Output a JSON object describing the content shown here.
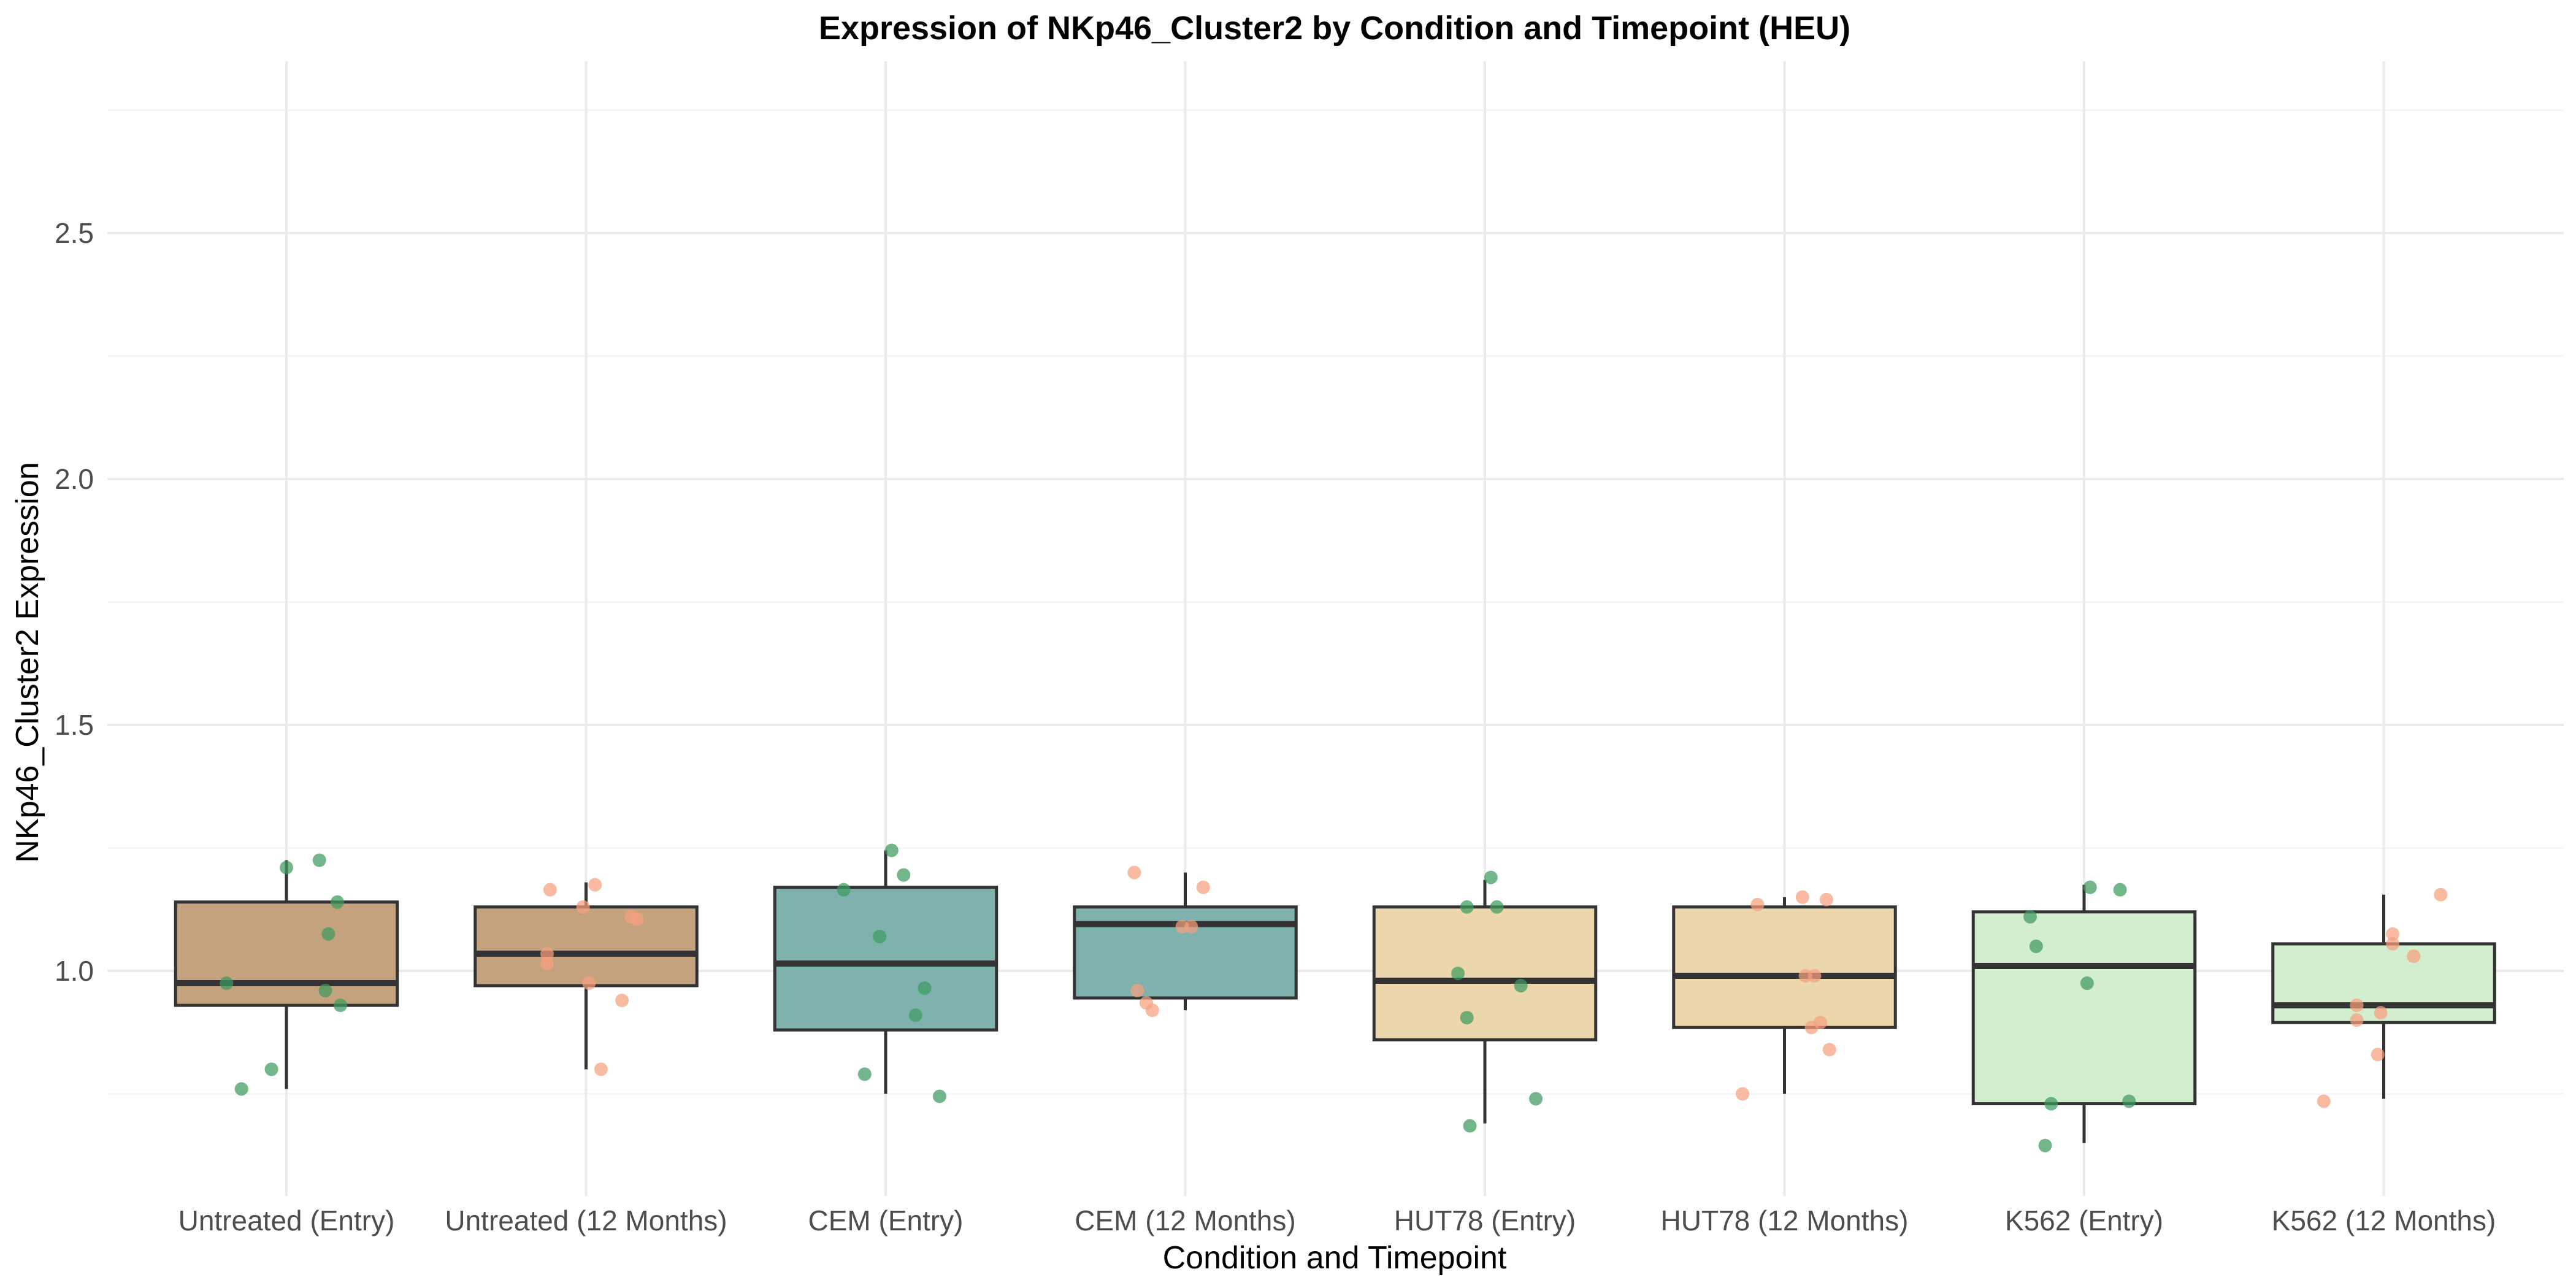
{
  "chart_data": {
    "type": "box",
    "title": "Expression of NKp46_Cluster2 by Condition and Timepoint (HEU)",
    "xlabel": "Condition and Timepoint",
    "ylabel": "NKp46_Cluster2 Expression",
    "ylim": [
      0.6,
      2.77
    ],
    "yticks": [
      1.0,
      1.5,
      2.0,
      2.5
    ],
    "grid": true,
    "legend": "none",
    "colors": {
      "untreated_fill": "#c4a27e",
      "cem_fill": "#7fb2ac",
      "hut78_fill": "#ecd6ac",
      "k562_fill": "#d3eecf",
      "entry_point": "#3f9a5f",
      "months12_point": "#f7a07e",
      "box_line": "#333333"
    },
    "categories": [
      {
        "label": "Untreated (Entry)",
        "fill": "#c4a27e",
        "point_color": "#3f9a5f",
        "whisker_low": 0.76,
        "q1": 0.93,
        "median": 0.975,
        "q3": 1.14,
        "whisker_high": 1.225,
        "points": [
          [
            -0.2,
            0.975
          ],
          [
            -0.15,
            0.76
          ],
          [
            -0.05,
            0.8
          ],
          [
            0.0,
            1.21
          ],
          [
            0.11,
            1.225
          ],
          [
            0.14,
            1.075
          ],
          [
            0.13,
            0.96
          ],
          [
            0.17,
            1.14
          ],
          [
            0.18,
            0.93
          ]
        ]
      },
      {
        "label": "Untreated (12 Months)",
        "fill": "#c4a27e",
        "point_color": "#f7a07e",
        "whisker_low": 0.8,
        "q1": 0.97,
        "median": 1.035,
        "q3": 1.13,
        "whisker_high": 1.18,
        "points": [
          [
            -0.12,
            1.165
          ],
          [
            -0.13,
            1.035
          ],
          [
            -0.13,
            1.015
          ],
          [
            -0.01,
            1.13
          ],
          [
            0.01,
            0.975
          ],
          [
            0.03,
            1.175
          ],
          [
            0.05,
            0.8
          ],
          [
            0.12,
            0.94
          ],
          [
            0.15,
            1.11
          ],
          [
            0.17,
            1.105
          ]
        ]
      },
      {
        "label": "CEM (Entry)",
        "fill": "#7fb2ac",
        "point_color": "#3f9a5f",
        "whisker_low": 0.75,
        "q1": 0.88,
        "median": 1.015,
        "q3": 1.17,
        "whisker_high": 1.245,
        "points": [
          [
            -0.14,
            1.165
          ],
          [
            -0.07,
            0.79
          ],
          [
            -0.02,
            1.07
          ],
          [
            0.02,
            1.245
          ],
          [
            0.06,
            1.195
          ],
          [
            0.1,
            0.91
          ],
          [
            0.13,
            0.965
          ],
          [
            0.18,
            0.745
          ]
        ]
      },
      {
        "label": "CEM (12 Months)",
        "fill": "#7fb2ac",
        "point_color": "#f7a07e",
        "whisker_low": 0.92,
        "q1": 0.945,
        "median": 1.095,
        "q3": 1.13,
        "whisker_high": 1.2,
        "points": [
          [
            -0.17,
            1.2
          ],
          [
            -0.16,
            0.96
          ],
          [
            -0.13,
            0.935
          ],
          [
            -0.11,
            0.92
          ],
          [
            -0.01,
            1.09
          ],
          [
            0.02,
            1.09
          ],
          [
            0.06,
            1.17
          ]
        ]
      },
      {
        "label": "HUT78 (Entry)",
        "fill": "#ecd6ac",
        "point_color": "#3f9a5f",
        "whisker_low": 0.69,
        "q1": 0.86,
        "median": 0.98,
        "q3": 1.13,
        "whisker_high": 1.185,
        "points": [
          [
            -0.09,
            0.995
          ],
          [
            -0.06,
            1.13
          ],
          [
            -0.06,
            0.905
          ],
          [
            -0.05,
            0.685
          ],
          [
            0.02,
            1.19
          ],
          [
            0.04,
            1.13
          ],
          [
            0.12,
            0.97
          ],
          [
            0.17,
            0.74
          ]
        ]
      },
      {
        "label": "HUT78 (12 Months)",
        "fill": "#ecd6ac",
        "point_color": "#f7a07e",
        "whisker_low": 0.75,
        "q1": 0.885,
        "median": 0.99,
        "q3": 1.13,
        "whisker_high": 1.15,
        "points": [
          [
            -0.14,
            0.75
          ],
          [
            -0.09,
            1.135
          ],
          [
            0.06,
            1.15
          ],
          [
            0.07,
            0.99
          ],
          [
            0.09,
            0.885
          ],
          [
            0.1,
            0.99
          ],
          [
            0.12,
            0.895
          ],
          [
            0.14,
            1.145
          ],
          [
            0.15,
            0.84
          ]
        ]
      },
      {
        "label": "K562 (Entry)",
        "fill": "#d3eecf",
        "point_color": "#3f9a5f",
        "whisker_low": 0.65,
        "q1": 0.73,
        "median": 1.01,
        "q3": 1.12,
        "whisker_high": 1.175,
        "points": [
          [
            -0.18,
            1.11
          ],
          [
            -0.16,
            1.05
          ],
          [
            -0.13,
            0.645
          ],
          [
            -0.11,
            0.73
          ],
          [
            0.01,
            0.975
          ],
          [
            0.02,
            1.17
          ],
          [
            0.12,
            1.165
          ],
          [
            0.15,
            0.735
          ]
        ]
      },
      {
        "label": "K562 (12 Months)",
        "fill": "#d3eecf",
        "point_color": "#f7a07e",
        "whisker_low": 0.74,
        "q1": 0.895,
        "median": 0.93,
        "q3": 1.055,
        "whisker_high": 1.155,
        "points": [
          [
            -0.2,
            0.735
          ],
          [
            -0.09,
            0.93
          ],
          [
            -0.09,
            0.9
          ],
          [
            -0.02,
            0.83
          ],
          [
            -0.01,
            0.915
          ],
          [
            0.03,
            1.075
          ],
          [
            0.03,
            1.055
          ],
          [
            0.1,
            1.03
          ],
          [
            0.19,
            1.155
          ]
        ]
      }
    ]
  }
}
